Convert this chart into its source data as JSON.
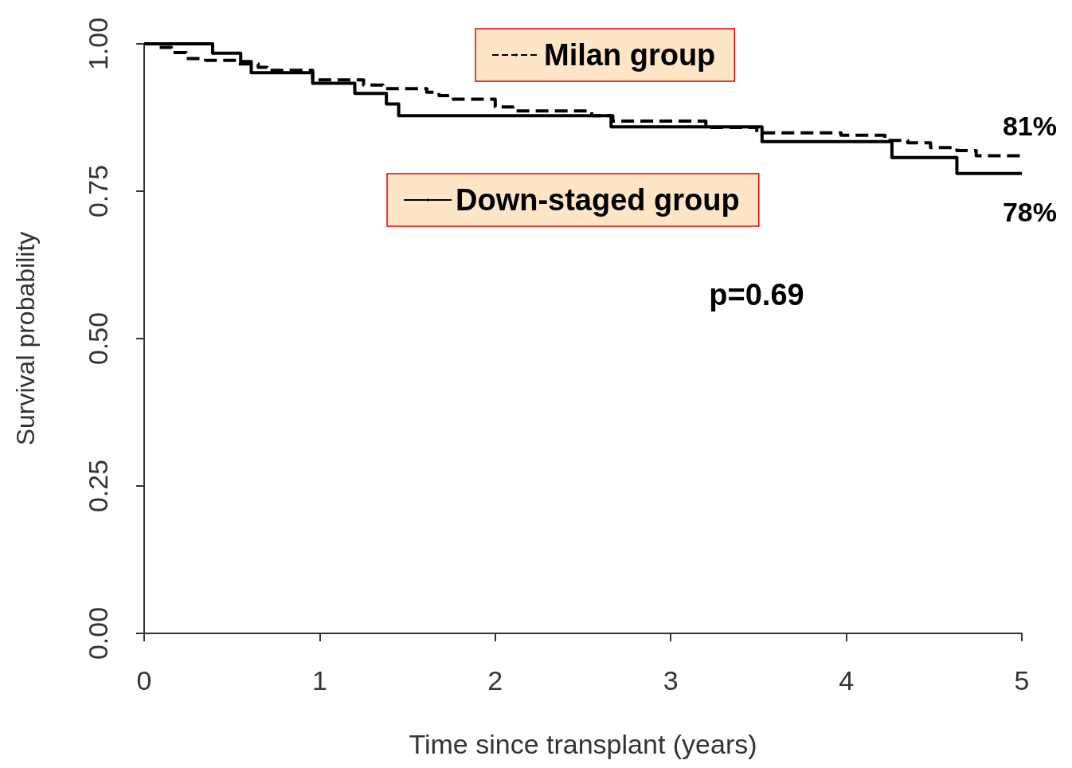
{
  "chart_data": {
    "type": "step",
    "xlabel": "Time since transplant (years)",
    "ylabel": "Survival probability",
    "xlim": [
      0,
      5
    ],
    "xticks": [
      0,
      1,
      2,
      3,
      4,
      5
    ],
    "ylim": [
      0,
      1
    ],
    "yticks": [
      {
        "value": 0,
        "label": "0.00"
      },
      {
        "value": 0.25,
        "label": "0.25"
      },
      {
        "value": 0.5,
        "label": "0.50"
      },
      {
        "value": 0.75,
        "label": "0.75"
      },
      {
        "value": 1,
        "label": "1.00"
      }
    ],
    "legend": "top",
    "grid": false,
    "series": [
      {
        "name": "Milan group",
        "color": "#000000",
        "line_style": "dashed",
        "x": [
          0,
          0.07,
          0.155,
          0.24,
          0.35,
          0.53,
          0.65,
          0.7,
          0.96,
          1.25,
          1.36,
          1.61,
          1.68,
          1.75,
          2.0,
          2.1,
          2.55,
          2.67,
          3.2,
          3.49,
          3.97,
          4.22,
          4.35,
          4.48,
          4.63,
          4.74,
          5.0
        ],
        "values": [
          1.0,
          0.994,
          0.985,
          0.975,
          0.972,
          0.966,
          0.96,
          0.955,
          0.939,
          0.93,
          0.924,
          0.918,
          0.912,
          0.906,
          0.893,
          0.886,
          0.878,
          0.869,
          0.858,
          0.849,
          0.845,
          0.836,
          0.832,
          0.824,
          0.819,
          0.81,
          0.81
        ]
      },
      {
        "name": "Down-staged group",
        "color": "#000000",
        "line_style": "solid",
        "x": [
          0,
          0.39,
          0.55,
          0.61,
          0.96,
          1.2,
          1.38,
          1.45,
          2.66,
          3.52,
          4.26,
          4.63,
          5.0
        ],
        "values": [
          1.0,
          0.984,
          0.97,
          0.951,
          0.933,
          0.916,
          0.898,
          0.878,
          0.859,
          0.834,
          0.807,
          0.78,
          0.78
        ]
      }
    ],
    "annotations": [
      {
        "text": "81%",
        "x": 5,
        "y": 0.81
      },
      {
        "text": "78%",
        "x": 5,
        "y": 0.78
      },
      "p=0.69"
    ]
  }
}
